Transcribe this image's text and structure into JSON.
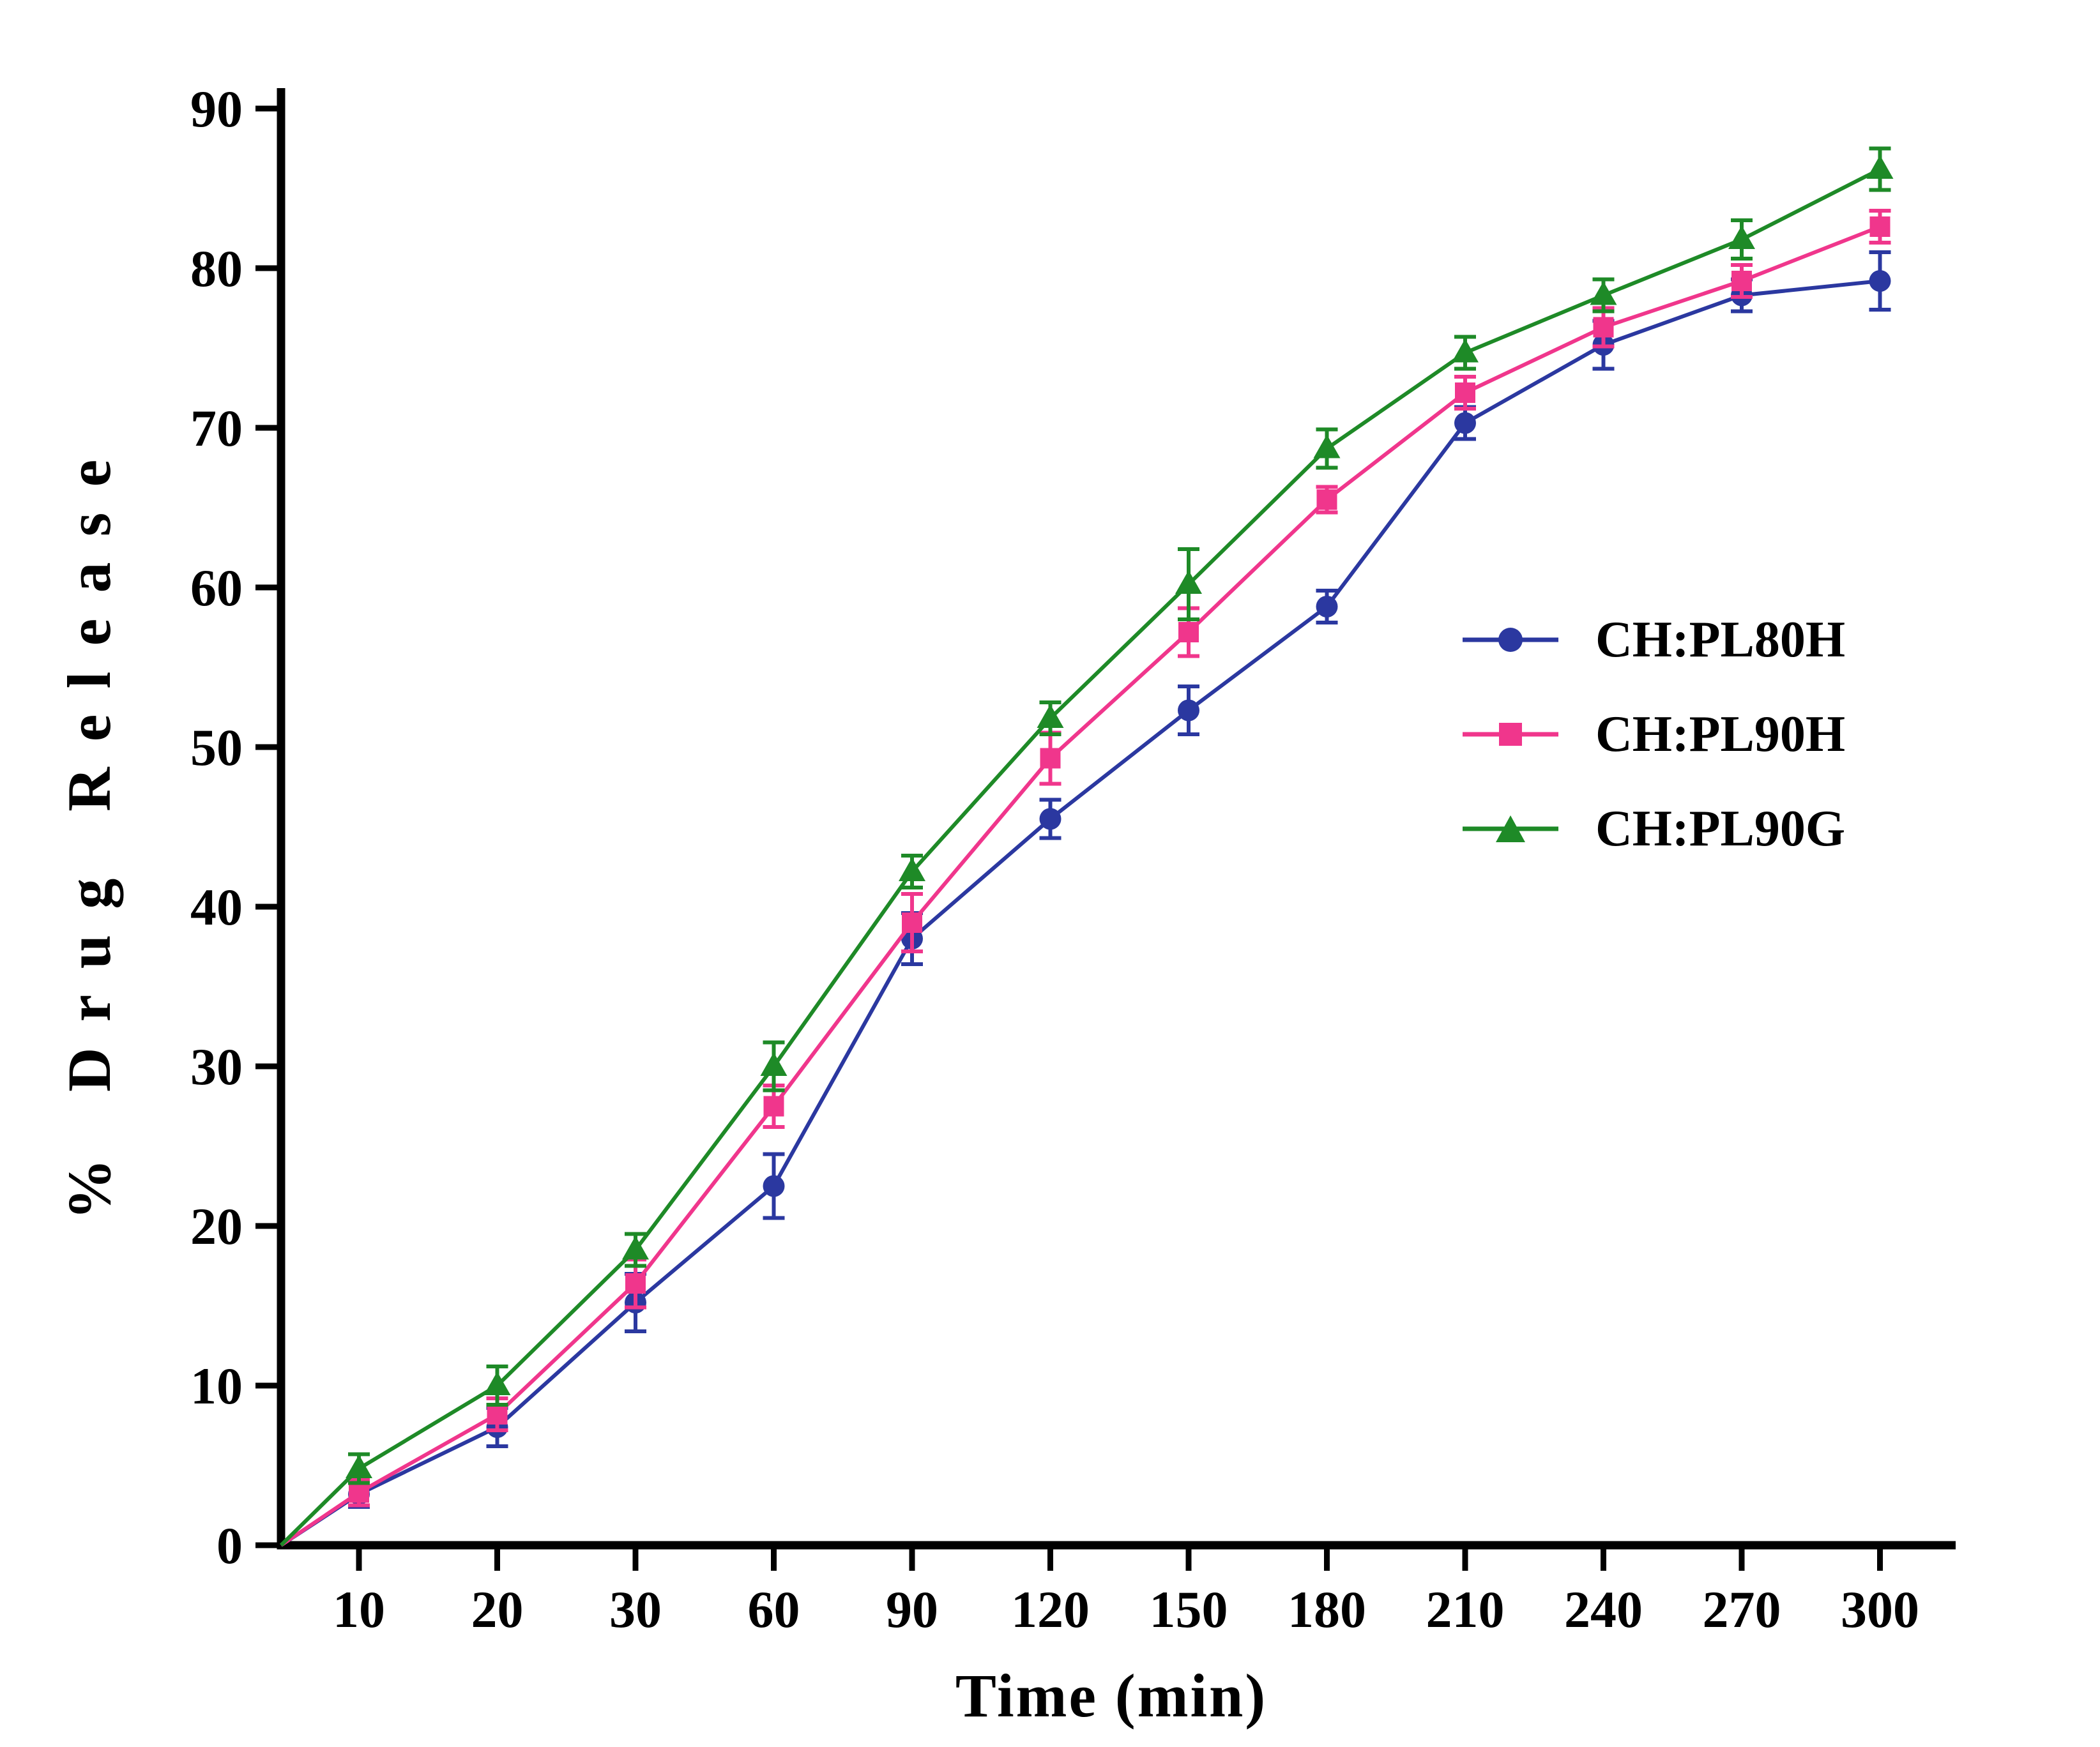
{
  "chart_data": {
    "type": "line",
    "title": "",
    "xlabel": "Time (min)",
    "ylabel": "% Drug Release",
    "x_axis_note": "categorical, evenly spaced time points; all series rise from the axis origin (0,0)",
    "categories": [
      "10",
      "20",
      "30",
      "60",
      "90",
      "120",
      "150",
      "180",
      "210",
      "240",
      "270",
      "300"
    ],
    "ylim": [
      0,
      90
    ],
    "yticks": [
      0,
      10,
      20,
      30,
      40,
      50,
      60,
      70,
      80,
      90
    ],
    "grid": false,
    "legend_position": "middle-right",
    "error_bars": true,
    "series": [
      {
        "name": "CH:PL80H",
        "marker": "circle",
        "color": "#2b38a0",
        "values": [
          3.2,
          7.4,
          15.2,
          22.5,
          38.0,
          45.5,
          52.3,
          58.8,
          70.3,
          75.2,
          78.3,
          79.2
        ],
        "errors": [
          0.8,
          1.2,
          1.8,
          2.0,
          1.6,
          1.2,
          1.5,
          1.0,
          1.0,
          1.5,
          1.0,
          1.8
        ]
      },
      {
        "name": "CH:PL90H",
        "marker": "square",
        "color": "#f0368c",
        "values": [
          3.3,
          8.2,
          16.4,
          27.5,
          39.0,
          49.3,
          57.2,
          65.5,
          72.2,
          76.3,
          79.2,
          82.6
        ],
        "errors": [
          0.8,
          1.0,
          1.5,
          1.3,
          1.8,
          1.6,
          1.5,
          0.8,
          1.0,
          1.2,
          1.0,
          1.0
        ]
      },
      {
        "name": "CH:PL90G",
        "marker": "triangle",
        "color": "#1e8a27",
        "values": [
          4.8,
          10.0,
          18.5,
          30.0,
          42.2,
          51.8,
          60.2,
          68.7,
          74.7,
          78.3,
          81.8,
          86.2
        ],
        "errors": [
          0.9,
          1.2,
          1.0,
          1.5,
          1.0,
          1.0,
          2.2,
          1.2,
          1.0,
          1.0,
          1.2,
          1.3
        ]
      }
    ]
  }
}
